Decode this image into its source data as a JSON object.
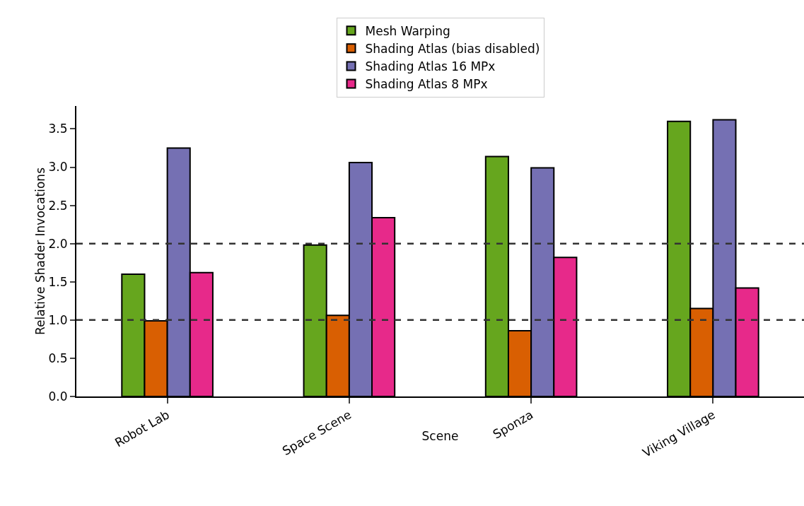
{
  "chart_data": {
    "type": "bar",
    "xlabel": "Scene",
    "ylabel": "Relative Shader Invocations",
    "categories": [
      "Robot Lab",
      "Space Scene",
      "Sponza",
      "Viking Village"
    ],
    "series": [
      {
        "name": "Mesh Warping",
        "color": "#66a61e",
        "values": [
          1.6,
          1.98,
          3.14,
          3.6
        ]
      },
      {
        "name": "Shading Atlas (bias disabled)",
        "color": "#d95f02",
        "values": [
          0.99,
          1.06,
          0.86,
          1.15
        ]
      },
      {
        "name": "Shading Atlas 16 MPx",
        "color": "#7570b3",
        "values": [
          3.25,
          3.06,
          2.99,
          3.62
        ]
      },
      {
        "name": "Shading Atlas 8 MPx",
        "color": "#e7298a",
        "values": [
          1.62,
          2.34,
          1.82,
          1.42
        ]
      }
    ],
    "ylim": [
      0,
      3.8
    ],
    "yticks": [
      {
        "value": 0,
        "label": "0.0"
      },
      {
        "value": 0.5,
        "label": "0.5"
      },
      {
        "value": 1,
        "label": "1.0"
      },
      {
        "value": 1.5,
        "label": "1.5"
      },
      {
        "value": 2,
        "label": "2.0"
      },
      {
        "value": 2.5,
        "label": "2.5"
      },
      {
        "value": 3,
        "label": "3.0"
      },
      {
        "value": 3.5,
        "label": "3.5"
      }
    ],
    "ref_lines": [
      {
        "axis": "y",
        "value": 1,
        "color": "#333333",
        "line_style": "dashed"
      },
      {
        "axis": "y",
        "value": 2,
        "color": "#333333",
        "line_style": "dashed"
      }
    ],
    "grid": false,
    "legend": "top"
  }
}
